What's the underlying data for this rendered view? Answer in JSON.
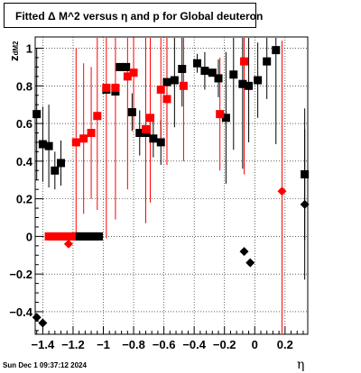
{
  "title": "Fitted Δ M^2 versus η and p for Global deuteron",
  "timestamp": "Sun Dec  1 09:37:12 2024",
  "chart_data": {
    "type": "scatter",
    "title": "Fitted Δ M^2 versus η and p for Global deuteron",
    "xlabel": "η",
    "ylabel": "z_dM2",
    "ylabel_main": "z",
    "ylabel_sub": "dM2",
    "xlim": [
      -1.45,
      0.35
    ],
    "ylim": [
      -0.52,
      1.06
    ],
    "x_ticks": [
      -1.4,
      -1.2,
      -1.0,
      -0.8,
      -0.6,
      -0.4,
      -0.2,
      0,
      0.2
    ],
    "x_tick_labels": [
      "−1.4",
      "−1.2",
      "−1",
      "−0.8",
      "−0.6",
      "−0.4",
      "−0.2",
      "0",
      "0.2"
    ],
    "y_ticks": [
      -0.4,
      -0.2,
      0,
      0.2,
      0.4,
      0.6,
      0.8,
      1
    ],
    "y_tick_labels": [
      "−0.4",
      "−0.2",
      "0",
      "0.2",
      "0.4",
      "0.6",
      "0.8",
      "1"
    ],
    "grid": true,
    "series": [
      {
        "marker": "square",
        "color": "#000000",
        "points": [
          {
            "x": -1.44,
            "y": 0.65,
            "err": 0.35
          },
          {
            "x": -1.4,
            "y": 0.49,
            "err": 0.2
          },
          {
            "x": -1.36,
            "y": 0.48,
            "err": 0.22
          },
          {
            "x": -1.32,
            "y": 0.35,
            "err": 0.1
          },
          {
            "x": -1.28,
            "y": 0.39,
            "err": 0.12
          },
          {
            "x": -1.18,
            "y": 0.0,
            "err": 0.0
          },
          {
            "x": -1.15,
            "y": 0.0,
            "err": 0.0
          },
          {
            "x": -1.12,
            "y": 0.0,
            "err": 0.0
          },
          {
            "x": -1.09,
            "y": 0.0,
            "err": 0.0
          },
          {
            "x": -1.06,
            "y": 0.0,
            "err": 0.0
          },
          {
            "x": -1.03,
            "y": 0.0,
            "err": 0.0
          },
          {
            "x": -0.98,
            "y": 0.78,
            "err": 0.0
          },
          {
            "x": -0.92,
            "y": 0.77,
            "err": 0.0
          },
          {
            "x": -0.89,
            "y": 0.9,
            "err": 0.0
          },
          {
            "x": -0.85,
            "y": 0.9,
            "err": 0.0
          },
          {
            "x": -0.81,
            "y": 0.66,
            "err": 0.1
          },
          {
            "x": -0.76,
            "y": 0.55,
            "err": 0.12
          },
          {
            "x": -0.72,
            "y": 0.55,
            "err": 0.05
          },
          {
            "x": -0.67,
            "y": 0.52,
            "err": 0.1
          },
          {
            "x": -0.62,
            "y": 0.5,
            "err": 0.12
          },
          {
            "x": -0.58,
            "y": 0.82,
            "err": 0.3
          },
          {
            "x": -0.53,
            "y": 0.83,
            "err": 0.25
          },
          {
            "x": -0.48,
            "y": 0.89,
            "err": 0.2
          },
          {
            "x": -0.38,
            "y": 0.92,
            "err": 0.05
          },
          {
            "x": -0.33,
            "y": 0.88,
            "err": 0.1
          },
          {
            "x": -0.28,
            "y": 0.87,
            "err": 0.0
          },
          {
            "x": -0.24,
            "y": 0.84,
            "err": 0.1
          },
          {
            "x": -0.19,
            "y": 0.63,
            "err": 0.35
          },
          {
            "x": -0.14,
            "y": 0.86,
            "err": 0.4
          },
          {
            "x": -0.08,
            "y": 0.81,
            "err": 0.45
          },
          {
            "x": -0.04,
            "y": 0.8,
            "err": 0.3
          },
          {
            "x": 0.02,
            "y": 0.83,
            "err": 0.2
          },
          {
            "x": 0.08,
            "y": 0.93,
            "err": 0.2
          },
          {
            "x": 0.14,
            "y": 0.99,
            "err": 0.5
          },
          {
            "x": 0.33,
            "y": 0.33,
            "err": 0.35
          }
        ]
      },
      {
        "marker": "diamond",
        "color": "#000000",
        "points": [
          {
            "x": -1.44,
            "y": -0.43,
            "err": 0.0
          },
          {
            "x": -1.4,
            "y": -0.46,
            "err": 0.0
          },
          {
            "x": -0.07,
            "y": -0.08,
            "err": 0.0
          },
          {
            "x": -0.03,
            "y": -0.14,
            "err": 0.0
          },
          {
            "x": 0.33,
            "y": 0.17,
            "err": 0.4
          }
        ]
      },
      {
        "marker": "square",
        "color": "#ff0000",
        "points": [
          {
            "x": -1.36,
            "y": 0.0,
            "err": 0.0
          },
          {
            "x": -1.33,
            "y": 0.0,
            "err": 0.0
          },
          {
            "x": -1.3,
            "y": 0.0,
            "err": 0.0
          },
          {
            "x": -1.27,
            "y": 0.0,
            "err": 0.0
          },
          {
            "x": -1.24,
            "y": 0.0,
            "err": 0.0
          },
          {
            "x": -1.21,
            "y": 0.0,
            "err": 0.0
          },
          {
            "x": -1.18,
            "y": 0.5,
            "err": 0.5
          },
          {
            "x": -1.13,
            "y": 0.52,
            "err": 0.4
          },
          {
            "x": -1.08,
            "y": 0.55,
            "err": 0.35
          },
          {
            "x": -1.04,
            "y": 0.64,
            "err": 0.5
          },
          {
            "x": -0.98,
            "y": 0.79,
            "err": 0.8
          },
          {
            "x": -0.92,
            "y": 0.79,
            "err": 0.7
          },
          {
            "x": -0.84,
            "y": 0.85,
            "err": 0.6
          },
          {
            "x": -0.8,
            "y": 0.87,
            "err": 0.3
          },
          {
            "x": -0.72,
            "y": 0.57,
            "err": 0.5
          },
          {
            "x": -0.69,
            "y": 0.63,
            "err": 0.45
          },
          {
            "x": -0.62,
            "y": 0.78,
            "err": 0.3
          },
          {
            "x": -0.58,
            "y": 0.73,
            "err": 0.35
          },
          {
            "x": -0.47,
            "y": 0.8,
            "err": 0.4
          },
          {
            "x": -0.23,
            "y": 0.65,
            "err": 0.3
          },
          {
            "x": -0.07,
            "y": 0.93,
            "err": 0.6
          }
        ]
      },
      {
        "marker": "diamond",
        "color": "#ff0000",
        "points": [
          {
            "x": -1.23,
            "y": -0.04,
            "err": 0.0
          },
          {
            "x": 0.18,
            "y": 0.24,
            "err": 0.8
          }
        ]
      }
    ]
  }
}
